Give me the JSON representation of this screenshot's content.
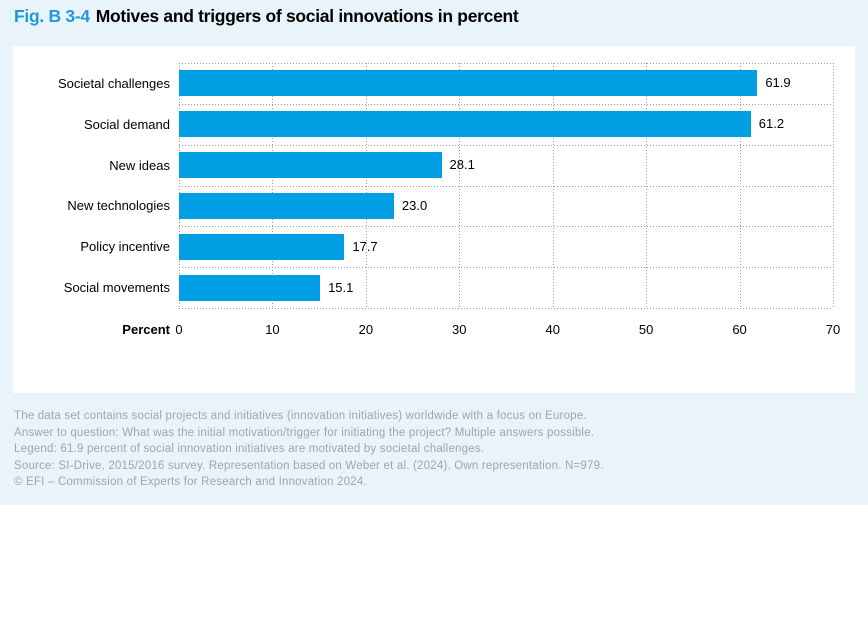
{
  "page": {
    "background_top": "#e9f3fa",
    "background_bottom": "#ffffff",
    "card_background": "#ffffff"
  },
  "header": {
    "fig_label": "Fig. B 3-4",
    "title": "Motives and triggers of social innovations in percent",
    "fig_label_color": "#2099d8"
  },
  "chart_data": {
    "type": "bar",
    "orientation": "horizontal",
    "title": "Motives and triggers of social innovations in percent",
    "categories": [
      "Societal challenges",
      "Social demand",
      "New ideas",
      "New technologies",
      "Policy incentive",
      "Social movements"
    ],
    "values": [
      61.9,
      61.2,
      28.1,
      23.0,
      17.7,
      15.1
    ],
    "value_labels": [
      "61.9",
      "61.2",
      "28.1",
      "23.0",
      "17.7",
      "15.1"
    ],
    "xlabel": "Percent",
    "xticks": [
      0,
      10,
      20,
      30,
      40,
      50,
      60,
      70
    ],
    "xtick_labels": [
      "0",
      "10",
      "20",
      "30",
      "40",
      "50",
      "60",
      "70"
    ],
    "xlim": [
      0,
      70
    ],
    "bar_color": "#009fe3",
    "grid": "dotted",
    "grid_color": "#9b9b9b",
    "legend_position": "none"
  },
  "footnotes": {
    "lines": [
      "The data set contains social projects and initiatives (innovation initiatives) worldwide with a focus on Europe.",
      "Answer to question: What was the initial motivation/trigger for initiating the project? Multiple answers possible.",
      "Legend: 61.9 percent of social innovation initiatives are motivated by societal challenges.",
      "Source: SI-Drive, 2015/2016 survey. Representation based on Weber et al. (2024). Own representation. N=979.",
      "© EFI – Commission of Experts for Research and Innovation 2024."
    ]
  }
}
